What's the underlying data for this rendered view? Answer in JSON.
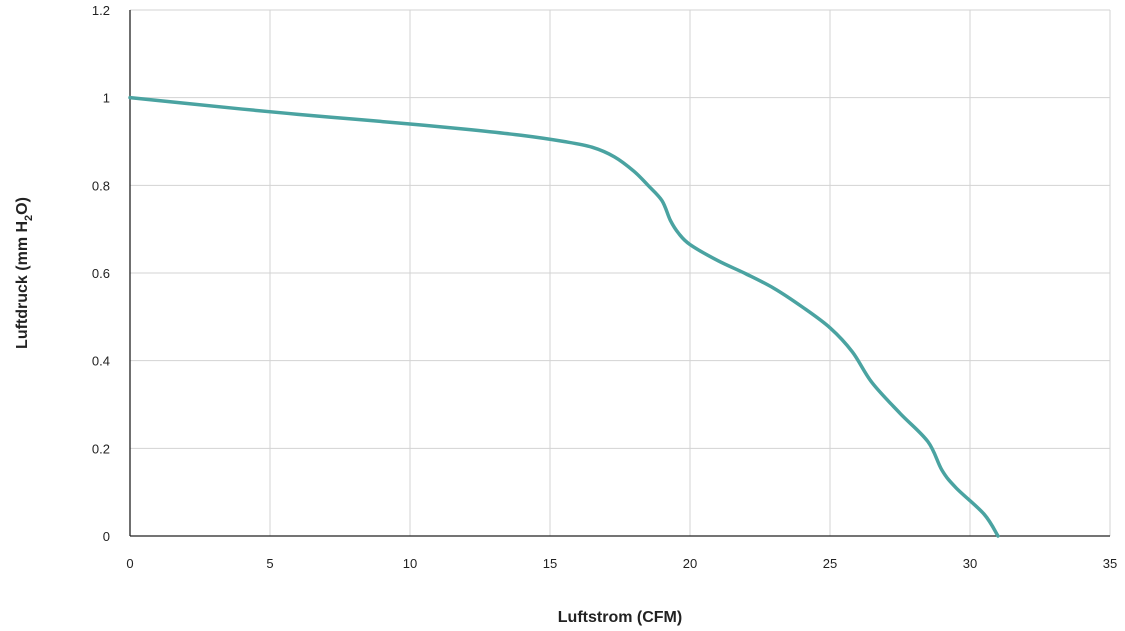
{
  "chart_data": {
    "type": "line",
    "title": "",
    "xlabel": "Luftstrom (CFM)",
    "ylabel_main": "Luftdruck (mm H",
    "ylabel_sub": "2",
    "ylabel_tail": "O)",
    "xlim": [
      0,
      35
    ],
    "ylim": [
      0,
      1.2
    ],
    "xticks": [
      0,
      5,
      10,
      15,
      20,
      25,
      30,
      35
    ],
    "yticks": [
      0,
      0.2,
      0.4,
      0.6,
      0.8,
      1,
      1.2
    ],
    "grid": true,
    "colors": {
      "line": "#4aa3a1",
      "grid": "#d3d3d3",
      "axis": "#222222"
    },
    "series": [
      {
        "x": [
          0,
          2,
          4,
          6,
          8,
          10,
          12,
          14,
          15.5,
          16.5,
          17.3,
          18,
          18.5,
          19,
          19.3,
          19.6,
          20,
          21,
          22,
          23,
          24,
          25,
          25.8,
          26.5,
          27.5,
          28.5,
          29,
          29.5,
          30.5,
          31
        ],
        "y": [
          1.0,
          0.987,
          0.974,
          0.962,
          0.951,
          0.94,
          0.928,
          0.914,
          0.9,
          0.887,
          0.865,
          0.832,
          0.8,
          0.765,
          0.72,
          0.69,
          0.665,
          0.628,
          0.598,
          0.565,
          0.523,
          0.475,
          0.42,
          0.35,
          0.28,
          0.215,
          0.15,
          0.11,
          0.05,
          0.0
        ]
      }
    ]
  }
}
